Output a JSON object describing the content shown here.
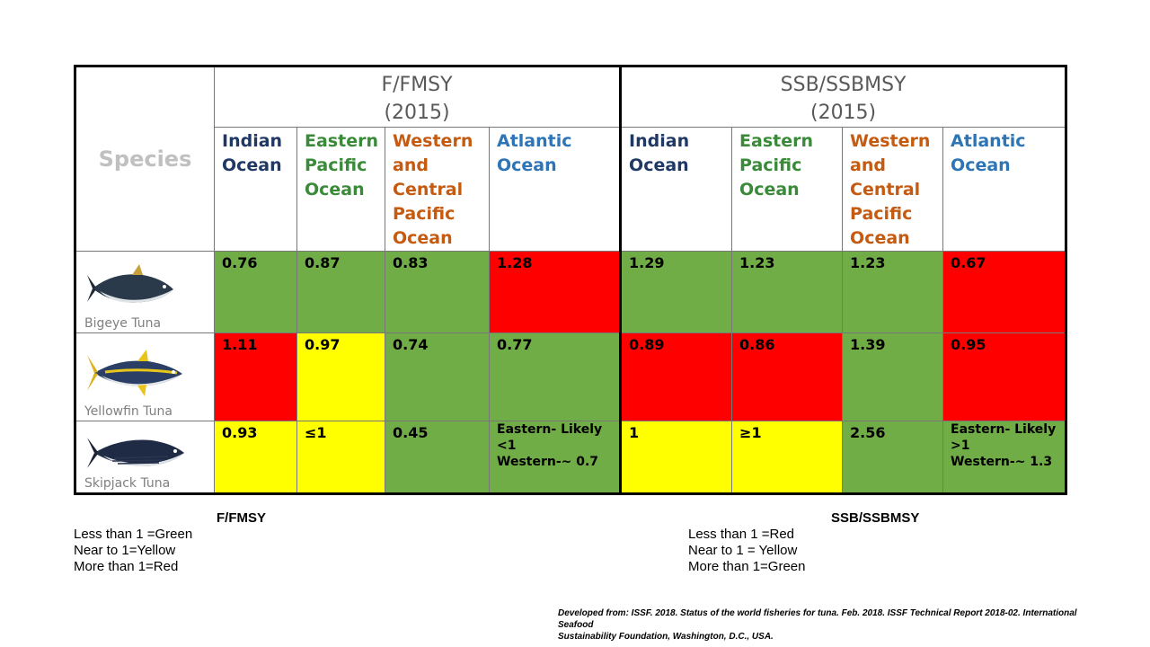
{
  "table": {
    "species_header": "Species",
    "ffmsy_header_line1": "F/FMSY",
    "ffmsy_header_line2": "(2015)",
    "ssb_header_line1": "SSB/SSBMSY",
    "ssb_header_line2": "(2015)",
    "oceans": {
      "indian": [
        "Indian",
        "Ocean"
      ],
      "eastern": [
        "Eastern",
        "Pacific",
        "Ocean"
      ],
      "western": [
        "Western",
        "and",
        "Central",
        "Pacific",
        "Ocean"
      ],
      "atlantic": [
        "Atlantic",
        "Ocean"
      ]
    },
    "rows": [
      {
        "species": "Bigeye Tuna",
        "ffmsy": [
          {
            "value": "0.76",
            "color": "green"
          },
          {
            "value": "0.87",
            "color": "green"
          },
          {
            "value": "0.83",
            "color": "green"
          },
          {
            "value": "1.28",
            "color": "red"
          }
        ],
        "ssb": [
          {
            "value": "1.29",
            "color": "green"
          },
          {
            "value": "1.23",
            "color": "green"
          },
          {
            "value": "1.23",
            "color": "green"
          },
          {
            "value": "0.67",
            "color": "red"
          }
        ]
      },
      {
        "species": "Yellowfin Tuna",
        "ffmsy": [
          {
            "value": "1.11",
            "color": "red"
          },
          {
            "value": "0.97",
            "color": "yellow"
          },
          {
            "value": "0.74",
            "color": "green"
          },
          {
            "value": "0.77",
            "color": "green"
          }
        ],
        "ssb": [
          {
            "value": "0.89",
            "color": "red"
          },
          {
            "value": "0.86",
            "color": "red"
          },
          {
            "value": "1.39",
            "color": "green"
          },
          {
            "value": "0.95",
            "color": "red"
          }
        ]
      },
      {
        "species": "Skipjack Tuna",
        "ffmsy": [
          {
            "value": "0.93",
            "color": "yellow"
          },
          {
            "value": "≤1",
            "color": "yellow"
          },
          {
            "value": "0.45",
            "color": "green"
          },
          {
            "value_lines": [
              "Eastern- Likely",
              "<1",
              "Western-~ 0.7"
            ],
            "color": "green"
          }
        ],
        "ssb": [
          {
            "value": "1",
            "color": "yellow"
          },
          {
            "value": "≥1",
            "color": "yellow"
          },
          {
            "value": "2.56",
            "color": "green"
          },
          {
            "value_lines": [
              "Eastern- Likely",
              ">1",
              "Western-~ 1.3"
            ],
            "color": "green"
          }
        ]
      }
    ]
  },
  "legend_ffmsy": {
    "title": "F/FMSY",
    "lines": [
      "Less than 1 =Green",
      "Near to 1=Yellow",
      "More than 1=Red"
    ]
  },
  "legend_ssb": {
    "title": "SSB/SSBMSY",
    "lines": [
      "Less than 1 =Red",
      "Near to 1 = Yellow",
      "More than 1=Green"
    ]
  },
  "source": {
    "line1": "Developed from: ISSF. 2018. Status of the world fisheries for tuna. Feb. 2018. ISSF Technical Report 2018-02. International Seafood",
    "line2": "Sustainability Foundation, Washington, D.C., USA."
  },
  "colors": {
    "green": "#70ad47",
    "red": "#ff0000",
    "yellow": "#ffff00"
  }
}
